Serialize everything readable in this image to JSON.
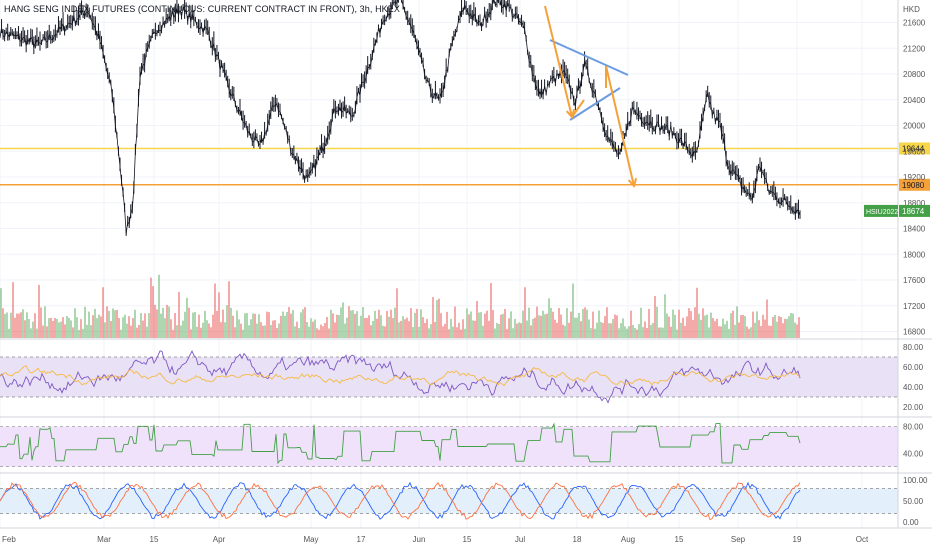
{
  "header": {
    "title": "HANG SENG INDEX FUTURES (CONTINUOUS: CURRENT CONTRACT IN FRONT), 3h, HKEX"
  },
  "chart_data": {
    "type": "line",
    "title": "HANG SENG INDEX FUTURES (CONTINUOUS: CURRENT CONTRACT IN FRONT), 3h, HKEX",
    "price_axis_label": "HKD",
    "price_ticks": [
      21600,
      21200,
      20800,
      20400,
      20000,
      19600,
      19200,
      18800,
      18400,
      18000,
      17600,
      17200,
      16800
    ],
    "price_range": [
      16700,
      21950
    ],
    "x_tick_labels": [
      "Feb",
      "Mar",
      "15",
      "Apr",
      "May",
      "17",
      "Jun",
      "15",
      "Jul",
      "18",
      "Aug",
      "15",
      "Sep",
      "19",
      "Oct"
    ],
    "price_series": {
      "name": "HSIU2022",
      "anchors": [
        [
          0,
          21450
        ],
        [
          0.05,
          21250
        ],
        [
          0.11,
          21800
        ],
        [
          0.125,
          21300
        ],
        [
          0.14,
          20500
        ],
        [
          0.15,
          19400
        ],
        [
          0.158,
          18350
        ],
        [
          0.166,
          18800
        ],
        [
          0.175,
          20800
        ],
        [
          0.195,
          21500
        ],
        [
          0.225,
          21800
        ],
        [
          0.26,
          21450
        ],
        [
          0.285,
          20600
        ],
        [
          0.31,
          19900
        ],
        [
          0.325,
          19650
        ],
        [
          0.345,
          20400
        ],
        [
          0.365,
          19600
        ],
        [
          0.385,
          19130
        ],
        [
          0.405,
          19700
        ],
        [
          0.42,
          20300
        ],
        [
          0.44,
          20150
        ],
        [
          0.46,
          20900
        ],
        [
          0.48,
          21700
        ],
        [
          0.5,
          21950
        ],
        [
          0.515,
          21500
        ],
        [
          0.535,
          20600
        ],
        [
          0.55,
          20350
        ],
        [
          0.565,
          21250
        ],
        [
          0.58,
          21850
        ],
        [
          0.6,
          21550
        ],
        [
          0.62,
          21950
        ],
        [
          0.635,
          21850
        ],
        [
          0.655,
          21500
        ],
        [
          0.665,
          20850
        ],
        [
          0.675,
          20450
        ],
        [
          0.69,
          20700
        ],
        [
          0.705,
          20800
        ],
        [
          0.72,
          20350
        ],
        [
          0.73,
          20950
        ],
        [
          0.745,
          20450
        ],
        [
          0.76,
          19800
        ],
        [
          0.775,
          19500
        ],
        [
          0.79,
          20250
        ],
        [
          0.805,
          20100
        ],
        [
          0.82,
          20000
        ],
        [
          0.84,
          19900
        ],
        [
          0.855,
          19700
        ],
        [
          0.87,
          19500
        ],
        [
          0.885,
          20500
        ],
        [
          0.89,
          20200
        ],
        [
          0.9,
          20000
        ],
        [
          0.91,
          19400
        ],
        [
          0.925,
          19100
        ],
        [
          0.94,
          18850
        ],
        [
          0.95,
          19400
        ],
        [
          0.96,
          19000
        ],
        [
          0.975,
          18850
        ],
        [
          1.0,
          18674
        ]
      ]
    },
    "horizontal_levels": [
      {
        "value": 19644,
        "label": "19644",
        "color": "#f7d64a"
      },
      {
        "value": 19080,
        "label": "19080",
        "color": "#f5a13a"
      }
    ],
    "last_price": {
      "symbol": "HSIU2022",
      "value": 18674,
      "label": "18674",
      "color": "#43a047"
    },
    "drawings": {
      "triangle_color": "#6b9be0",
      "arrow_color": "#f5a13a"
    },
    "volume": {
      "colors": {
        "up": "#43a047",
        "down": "#e53935"
      }
    },
    "oscillators": [
      {
        "name": "",
        "ticks": [
          "80.00",
          "60.00",
          "40.00",
          "20.00"
        ],
        "range": [
          15,
          85
        ],
        "band": [
          30,
          70
        ],
        "band_color": "#e9e2f7",
        "line_colors": [
          "#7e57c2",
          "#f5b942"
        ]
      },
      {
        "name": "",
        "ticks": [
          "80.00",
          "40.00"
        ],
        "range": [
          15,
          90
        ],
        "band": [
          20,
          80
        ],
        "band_color": "#f1e2fb",
        "line_colors": [
          "#43a047"
        ]
      },
      {
        "name": "",
        "ticks": [
          "100.00",
          "50.00",
          "0.00"
        ],
        "range": [
          -10,
          110
        ],
        "band": [
          20,
          80
        ],
        "band_color": "#e3f0fb",
        "line_colors": [
          "#2962ff",
          "#ff7043"
        ]
      }
    ]
  }
}
